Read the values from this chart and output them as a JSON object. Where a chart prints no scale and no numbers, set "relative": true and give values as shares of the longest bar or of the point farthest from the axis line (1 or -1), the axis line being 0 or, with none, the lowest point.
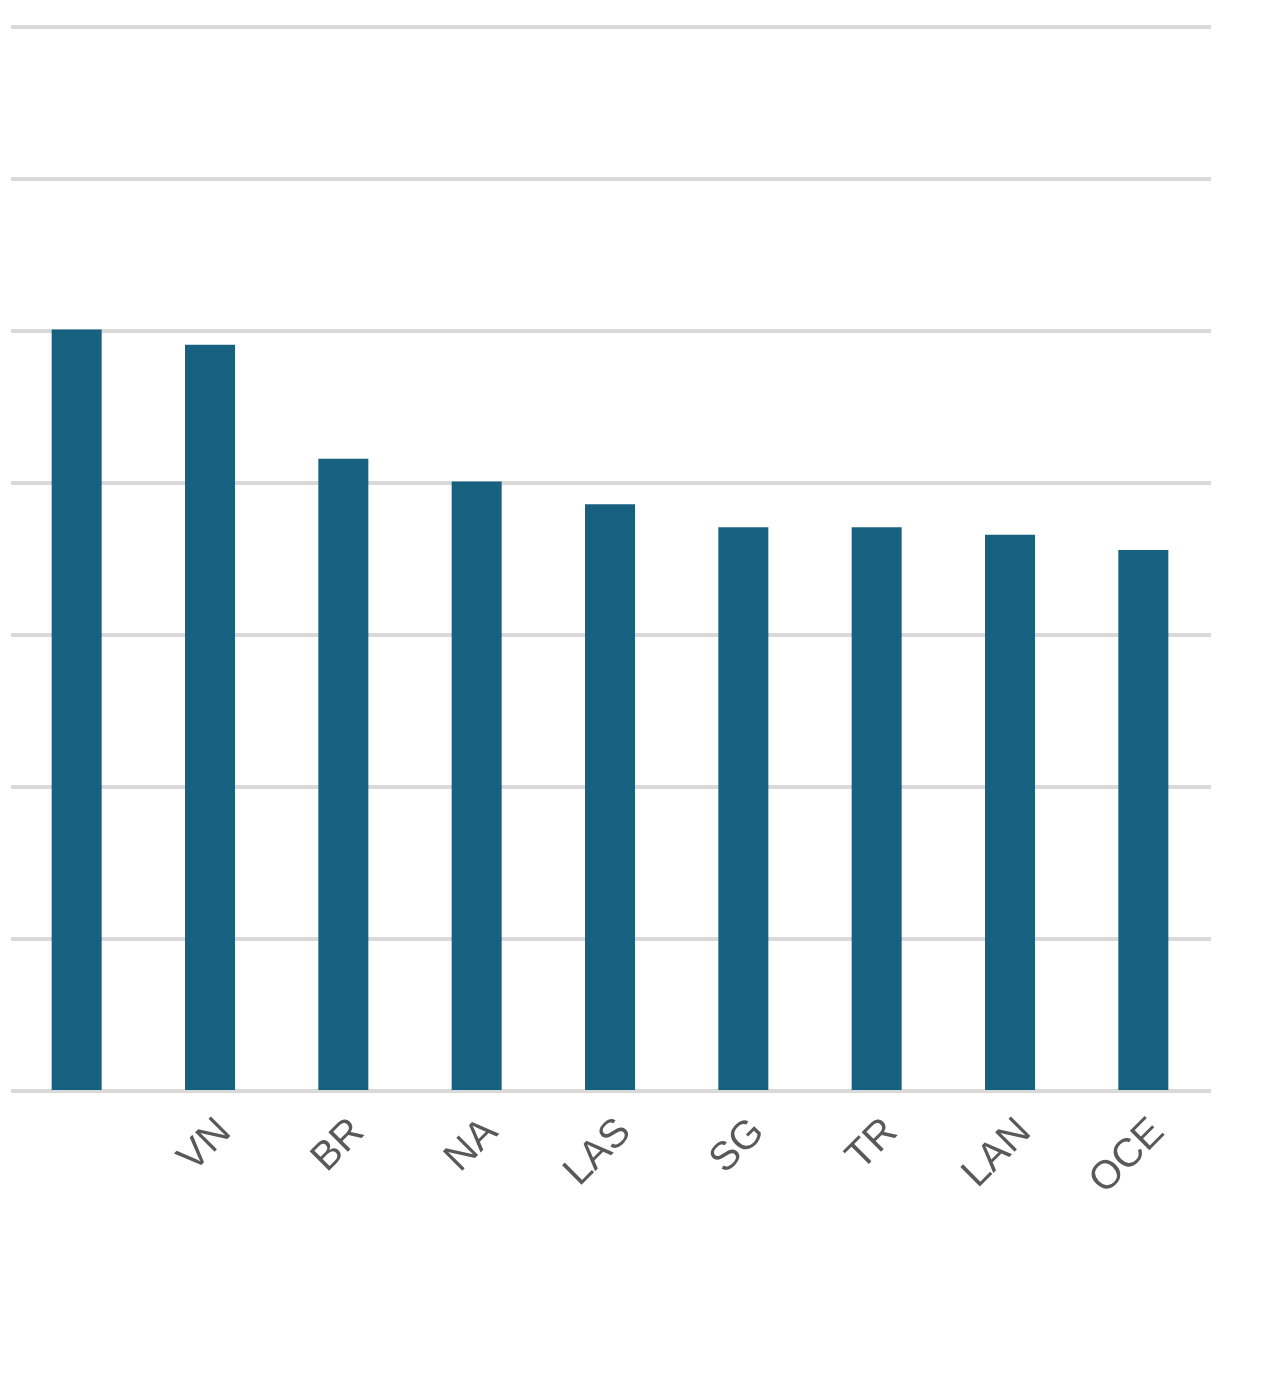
{
  "chart_data": {
    "type": "bar",
    "relative": true,
    "categories": [
      null,
      "VN",
      "BR",
      "NA",
      "LAS",
      "SG",
      "TR",
      "LAN",
      "OCE"
    ],
    "values": [
      1,
      0.98,
      0.83,
      0.8,
      0.77,
      0.74,
      0.74,
      0.73,
      0.71
    ],
    "color": "#17607f",
    "grid": "y"
  }
}
